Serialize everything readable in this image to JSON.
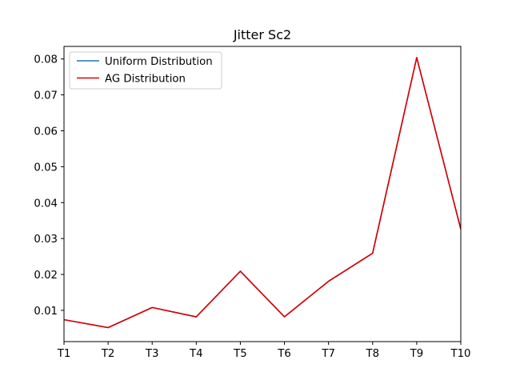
{
  "chart_data": {
    "type": "line",
    "title": "Jitter Sc2",
    "xlabel": "",
    "ylabel": "",
    "categories": [
      "T1",
      "T2",
      "T3",
      "T4",
      "T5",
      "T6",
      "T7",
      "T8",
      "T9",
      "T10"
    ],
    "ylim": [
      0.0013,
      0.0835
    ],
    "yticks": [
      "0.01",
      "0.02",
      "0.03",
      "0.04",
      "0.05",
      "0.06",
      "0.07",
      "0.08"
    ],
    "ytick_values": [
      0.01,
      0.02,
      0.03,
      0.04,
      0.05,
      0.06,
      0.07,
      0.08
    ],
    "legend_position": "upper-left",
    "grid": false,
    "series": [
      {
        "name": "Uniform Distribution",
        "color": "#1f77b4",
        "values": [
          0.0074,
          0.0052,
          0.0108,
          0.0082,
          0.0209,
          0.0082,
          0.0181,
          0.0259,
          0.0804,
          0.0326
        ]
      },
      {
        "name": "AG Distribution",
        "color": "#e00000",
        "values": [
          0.0074,
          0.0052,
          0.0108,
          0.0082,
          0.0209,
          0.0082,
          0.0181,
          0.0259,
          0.0804,
          0.0326
        ]
      }
    ]
  }
}
